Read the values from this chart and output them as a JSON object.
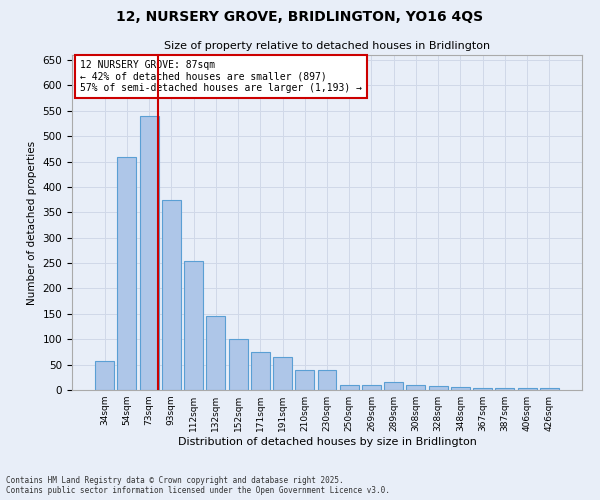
{
  "title_line1": "12, NURSERY GROVE, BRIDLINGTON, YO16 4QS",
  "title_line2": "Size of property relative to detached houses in Bridlington",
  "xlabel": "Distribution of detached houses by size in Bridlington",
  "ylabel": "Number of detached properties",
  "categories": [
    "34sqm",
    "54sqm",
    "73sqm",
    "93sqm",
    "112sqm",
    "132sqm",
    "152sqm",
    "171sqm",
    "191sqm",
    "210sqm",
    "230sqm",
    "250sqm",
    "269sqm",
    "289sqm",
    "308sqm",
    "328sqm",
    "348sqm",
    "367sqm",
    "387sqm",
    "406sqm",
    "426sqm"
  ],
  "values": [
    58,
    460,
    540,
    375,
    255,
    145,
    100,
    75,
    65,
    40,
    40,
    10,
    10,
    15,
    10,
    8,
    5,
    3,
    3,
    3,
    3
  ],
  "bar_color": "#aec6e8",
  "bar_edge_color": "#5a9fd4",
  "red_line_x": 2.42,
  "red_line_label": "12 NURSERY GROVE: 87sqm",
  "annotation_line2": "← 42% of detached houses are smaller (897)",
  "annotation_line3": "57% of semi-detached houses are larger (1,193) →",
  "annotation_box_color": "#ffffff",
  "annotation_box_edge": "#cc0000",
  "red_line_color": "#cc0000",
  "ylim": [
    0,
    660
  ],
  "yticks": [
    0,
    50,
    100,
    150,
    200,
    250,
    300,
    350,
    400,
    450,
    500,
    550,
    600,
    650
  ],
  "grid_color": "#d0d8e8",
  "background_color": "#e8eef8",
  "footnote_line1": "Contains HM Land Registry data © Crown copyright and database right 2025.",
  "footnote_line2": "Contains public sector information licensed under the Open Government Licence v3.0."
}
